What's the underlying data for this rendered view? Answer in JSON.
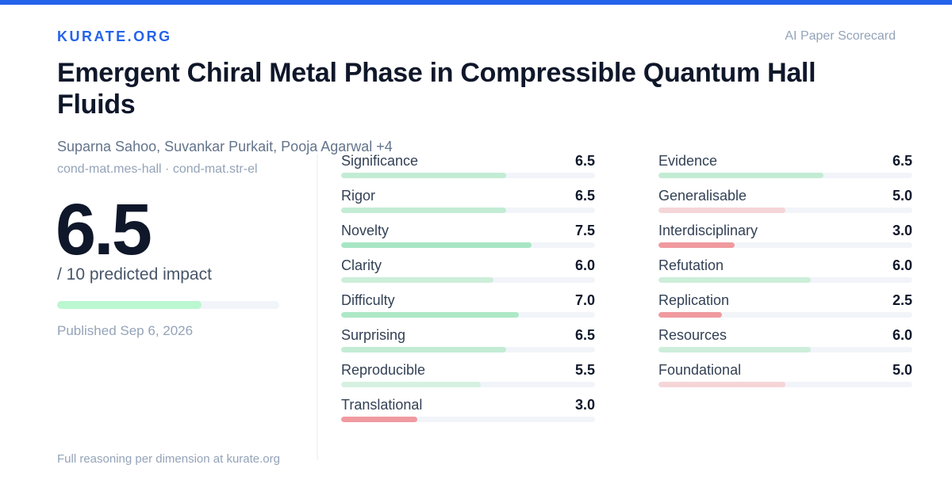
{
  "brand": "KURATE.ORG",
  "tagline": "AI Paper Scorecard",
  "paper": {
    "title": "Emergent Chiral Metal Phase in Compressible Quantum Hall Fluids",
    "authors": "Suparna Sahoo, Suvankar Purkait, Pooja Agarwal +4",
    "categories": "cond-mat.mes-hall · cond-mat.str-el",
    "published": "Published Sep 6, 2026"
  },
  "score": {
    "value": "6.5",
    "max_label": "/ 10 predicted impact",
    "fraction": 0.65
  },
  "footer": "Full reasoning per dimension at kurate.org",
  "colors": {
    "brand": "#2563eb",
    "high": "#a7e6c4",
    "mid": "#cdeeda",
    "low_mid": "#f5d5d8",
    "low": "#f09a9f"
  },
  "metrics_left": [
    {
      "label": "Significance",
      "value": "6.5",
      "score": 6.5,
      "color": "#c3ecd4"
    },
    {
      "label": "Rigor",
      "value": "6.5",
      "score": 6.5,
      "color": "#c3ecd4"
    },
    {
      "label": "Novelty",
      "value": "7.5",
      "score": 7.5,
      "color": "#a7e6c4"
    },
    {
      "label": "Clarity",
      "value": "6.0",
      "score": 6.0,
      "color": "#cdeeda"
    },
    {
      "label": "Difficulty",
      "value": "7.0",
      "score": 7.0,
      "color": "#aee8c7"
    },
    {
      "label": "Surprising",
      "value": "6.5",
      "score": 6.5,
      "color": "#c3ecd4"
    },
    {
      "label": "Reproducible",
      "value": "5.5",
      "score": 5.5,
      "color": "#d6f1e1"
    },
    {
      "label": "Translational",
      "value": "3.0",
      "score": 3.0,
      "color": "#f09a9f"
    }
  ],
  "metrics_right": [
    {
      "label": "Evidence",
      "value": "6.5",
      "score": 6.5,
      "color": "#c3ecd4"
    },
    {
      "label": "Generalisable",
      "value": "5.0",
      "score": 5.0,
      "color": "#f5d5d8"
    },
    {
      "label": "Interdisciplinary",
      "value": "3.0",
      "score": 3.0,
      "color": "#f09a9f"
    },
    {
      "label": "Refutation",
      "value": "6.0",
      "score": 6.0,
      "color": "#cdeeda"
    },
    {
      "label": "Replication",
      "value": "2.5",
      "score": 2.5,
      "color": "#f09a9f"
    },
    {
      "label": "Resources",
      "value": "6.0",
      "score": 6.0,
      "color": "#cdeeda"
    },
    {
      "label": "Foundational",
      "value": "5.0",
      "score": 5.0,
      "color": "#f5d5d8"
    }
  ]
}
